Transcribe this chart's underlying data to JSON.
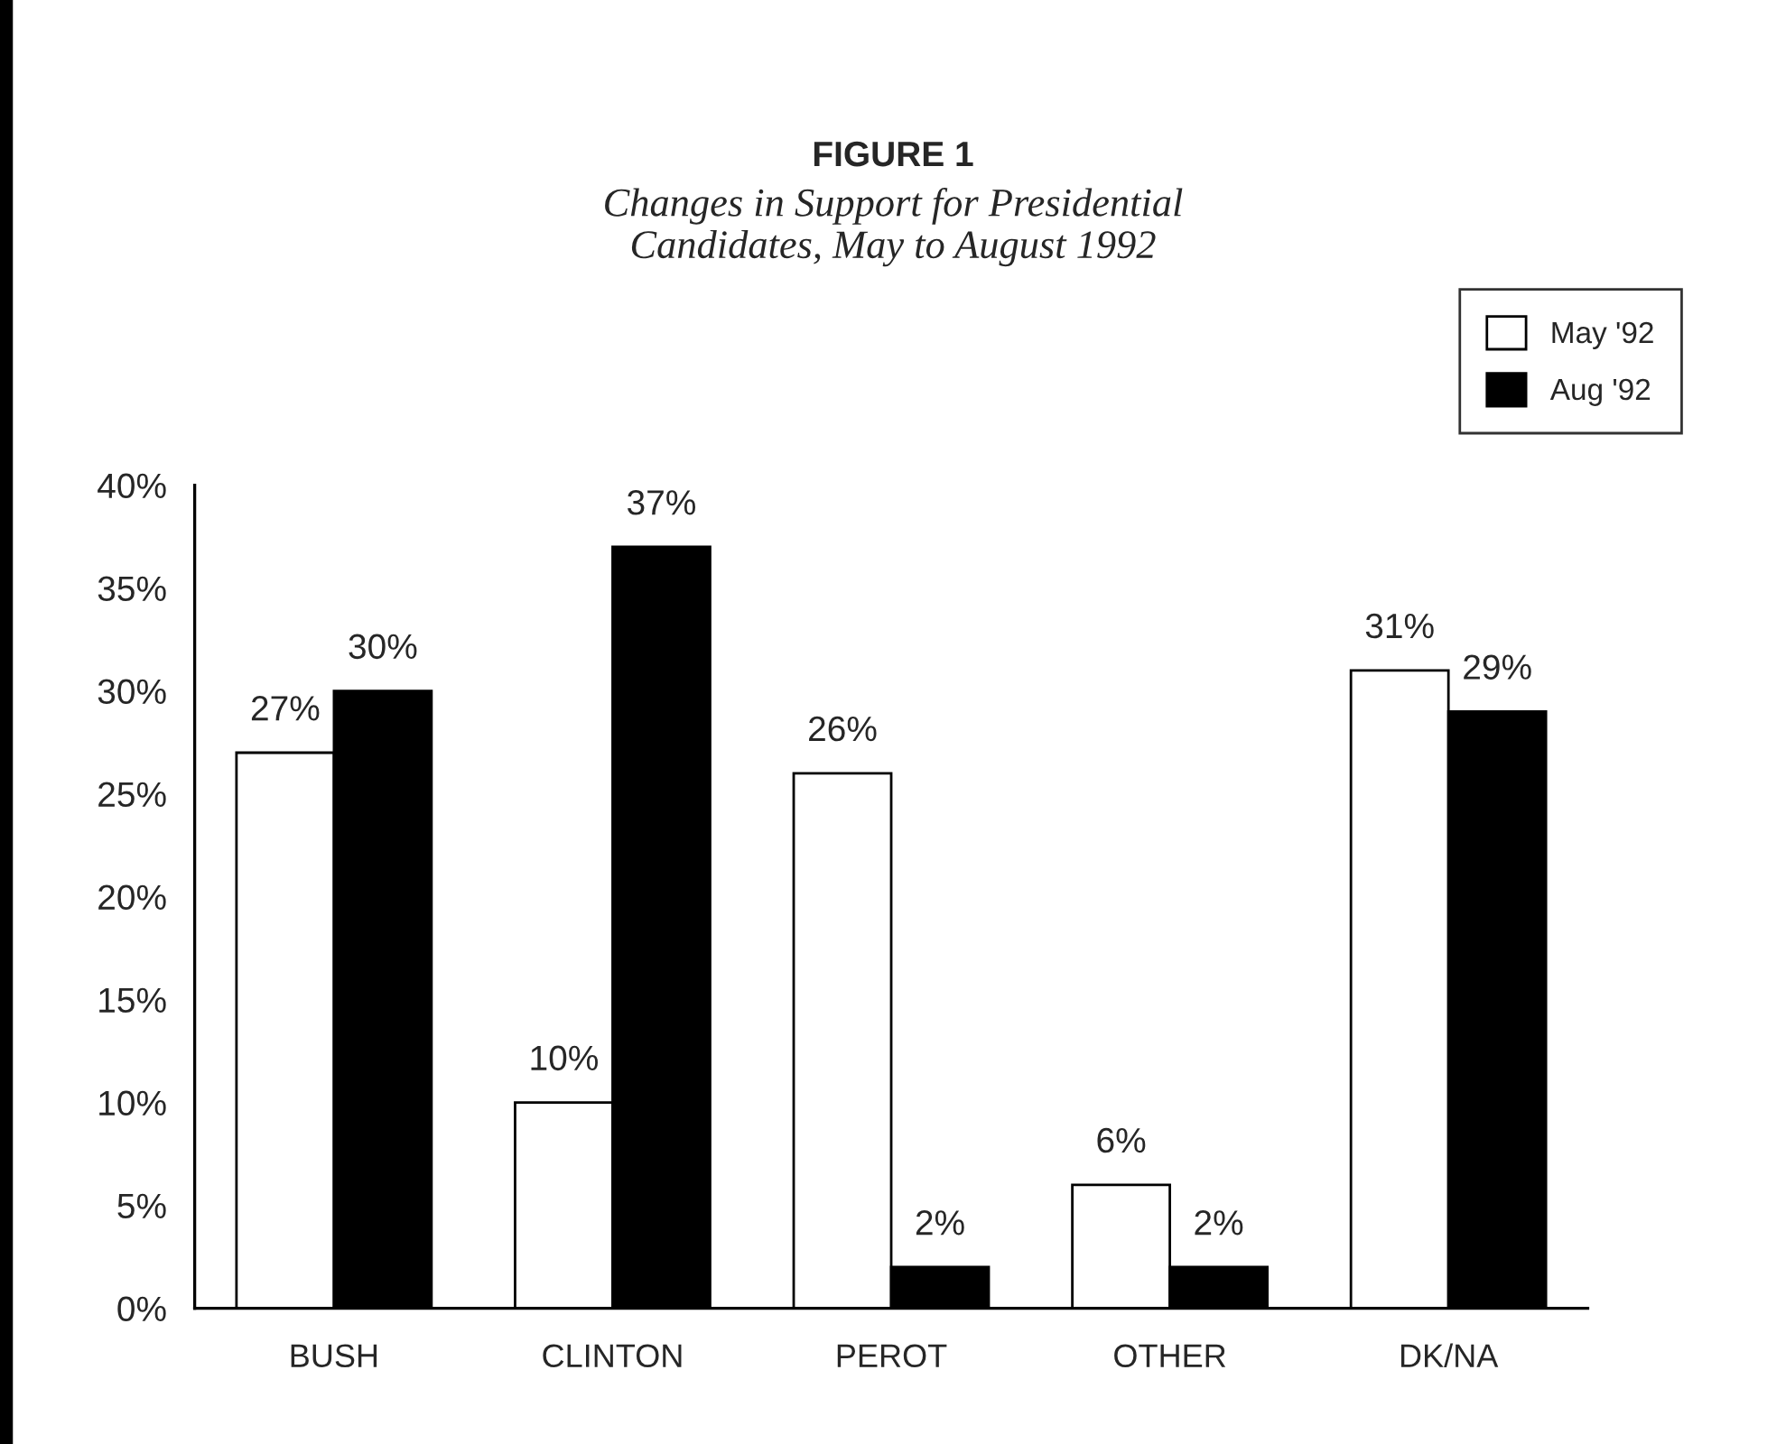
{
  "chart_data": {
    "type": "bar",
    "title": "FIGURE 1",
    "subtitle": "Changes in Support for Presidential\nCandidates, May to August 1992",
    "categories": [
      "BUSH",
      "CLINTON",
      "PEROT",
      "OTHER",
      "DK/NA"
    ],
    "series": [
      {
        "name": "May '92",
        "color": "#ffffff",
        "values": [
          27,
          10,
          26,
          6,
          31
        ],
        "value_labels": [
          "27%",
          "10%",
          "26%",
          "6%",
          "31%"
        ]
      },
      {
        "name": "Aug '92",
        "color": "#000000",
        "values": [
          30,
          37,
          2,
          2,
          29
        ],
        "value_labels": [
          "30%",
          "37%",
          "2%",
          "2%",
          "29%"
        ]
      }
    ],
    "ylim": [
      0,
      40
    ],
    "yticks": [
      {
        "value": 0,
        "label": "0%"
      },
      {
        "value": 5,
        "label": "5%"
      },
      {
        "value": 10,
        "label": "10%"
      },
      {
        "value": 15,
        "label": "15%"
      },
      {
        "value": 20,
        "label": "20%"
      },
      {
        "value": 25,
        "label": "25%"
      },
      {
        "value": 30,
        "label": "30%"
      },
      {
        "value": 35,
        "label": "35%"
      },
      {
        "value": 40,
        "label": "40%"
      }
    ],
    "grid": false,
    "legend": "top right"
  }
}
